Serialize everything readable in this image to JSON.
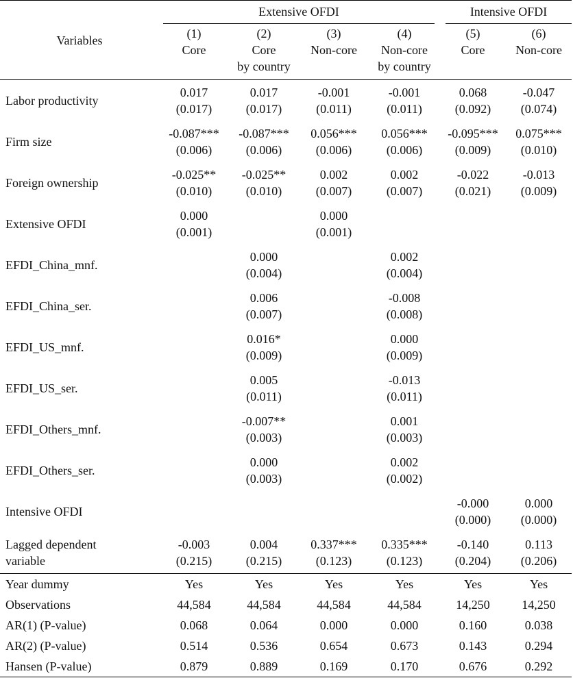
{
  "header": {
    "variables_label": "Variables",
    "group_extensive": "Extensive OFDI",
    "group_intensive": "Intensive OFDI",
    "columns": [
      {
        "num": "(1)",
        "line1": "Core",
        "line2": ""
      },
      {
        "num": "(2)",
        "line1": "Core",
        "line2": "by country"
      },
      {
        "num": "(3)",
        "line1": "Non-core",
        "line2": ""
      },
      {
        "num": "(4)",
        "line1": "Non-core",
        "line2": "by country"
      },
      {
        "num": "(5)",
        "line1": "Core",
        "line2": ""
      },
      {
        "num": "(6)",
        "line1": "Non-core",
        "line2": ""
      }
    ]
  },
  "rows": [
    {
      "label": "Labor productivity",
      "cells": [
        [
          "0.017",
          "(0.017)"
        ],
        [
          "0.017",
          "(0.017)"
        ],
        [
          "-0.001",
          "(0.011)"
        ],
        [
          "-0.001",
          "(0.011)"
        ],
        [
          "0.068",
          "(0.092)"
        ],
        [
          "-0.047",
          "(0.074)"
        ]
      ]
    },
    {
      "label": "Firm size",
      "cells": [
        [
          "-0.087***",
          "(0.006)"
        ],
        [
          "-0.087***",
          "(0.006)"
        ],
        [
          "0.056***",
          "(0.006)"
        ],
        [
          "0.056***",
          "(0.006)"
        ],
        [
          "-0.095***",
          "(0.009)"
        ],
        [
          "0.075***",
          "(0.010)"
        ]
      ]
    },
    {
      "label": "Foreign ownership",
      "cells": [
        [
          "-0.025**",
          "(0.010)"
        ],
        [
          "-0.025**",
          "(0.010)"
        ],
        [
          "0.002",
          "(0.007)"
        ],
        [
          "0.002",
          "(0.007)"
        ],
        [
          "-0.022",
          "(0.021)"
        ],
        [
          "-0.013",
          "(0.009)"
        ]
      ]
    },
    {
      "label": "Extensive OFDI",
      "cells": [
        [
          "0.000",
          "(0.001)"
        ],
        [
          "",
          ""
        ],
        [
          "0.000",
          "(0.001)"
        ],
        [
          "",
          ""
        ],
        [
          "",
          ""
        ],
        [
          "",
          ""
        ]
      ]
    },
    {
      "label": "EFDI_China_mnf.",
      "cells": [
        [
          "",
          ""
        ],
        [
          "0.000",
          "(0.004)"
        ],
        [
          "",
          ""
        ],
        [
          "0.002",
          "(0.004)"
        ],
        [
          "",
          ""
        ],
        [
          "",
          ""
        ]
      ]
    },
    {
      "label": "EFDI_China_ser.",
      "cells": [
        [
          "",
          ""
        ],
        [
          "0.006",
          "(0.007)"
        ],
        [
          "",
          ""
        ],
        [
          "-0.008",
          "(0.008)"
        ],
        [
          "",
          ""
        ],
        [
          "",
          ""
        ]
      ]
    },
    {
      "label": "EFDI_US_mnf.",
      "cells": [
        [
          "",
          ""
        ],
        [
          "0.016*",
          "(0.009)"
        ],
        [
          "",
          ""
        ],
        [
          "0.000",
          "(0.009)"
        ],
        [
          "",
          ""
        ],
        [
          "",
          ""
        ]
      ]
    },
    {
      "label": "EFDI_US_ser.",
      "cells": [
        [
          "",
          ""
        ],
        [
          "0.005",
          "(0.011)"
        ],
        [
          "",
          ""
        ],
        [
          "-0.013",
          "(0.011)"
        ],
        [
          "",
          ""
        ],
        [
          "",
          ""
        ]
      ]
    },
    {
      "label": "EFDI_Others_mnf.",
      "cells": [
        [
          "",
          ""
        ],
        [
          "-0.007**",
          "(0.003)"
        ],
        [
          "",
          ""
        ],
        [
          "0.001",
          "(0.003)"
        ],
        [
          "",
          ""
        ],
        [
          "",
          ""
        ]
      ]
    },
    {
      "label": "EFDI_Others_ser.",
      "cells": [
        [
          "",
          ""
        ],
        [
          "0.000",
          "(0.003)"
        ],
        [
          "",
          ""
        ],
        [
          "0.002",
          "(0.002)"
        ],
        [
          "",
          ""
        ],
        [
          "",
          ""
        ]
      ]
    },
    {
      "label": "Intensive OFDI",
      "cells": [
        [
          "",
          ""
        ],
        [
          "",
          ""
        ],
        [
          "",
          ""
        ],
        [
          "",
          ""
        ],
        [
          "-0.000",
          "(0.000)"
        ],
        [
          "0.000",
          "(0.000)"
        ]
      ]
    },
    {
      "label": "Lagged dependent variable",
      "label_line1": "Lagged dependent",
      "label_line2": "variable",
      "cells": [
        [
          "-0.003",
          "(0.215)"
        ],
        [
          "0.004",
          "(0.215)"
        ],
        [
          "0.337***",
          "(0.123)"
        ],
        [
          "0.335***",
          "(0.123)"
        ],
        [
          "-0.140",
          "(0.204)"
        ],
        [
          "0.113",
          "(0.206)"
        ]
      ]
    }
  ],
  "stats": [
    {
      "label": "Year dummy",
      "values": [
        "Yes",
        "Yes",
        "Yes",
        "Yes",
        "Yes",
        "Yes"
      ]
    },
    {
      "label": "Observations",
      "values": [
        "44,584",
        "44,584",
        "44,584",
        "44,584",
        "14,250",
        "14,250"
      ]
    },
    {
      "label": "AR(1) (P-value)",
      "values": [
        "0.068",
        "0.064",
        "0.000",
        "0.000",
        "0.160",
        "0.038"
      ]
    },
    {
      "label": "AR(2) (P-value)",
      "values": [
        "0.514",
        "0.536",
        "0.654",
        "0.673",
        "0.143",
        "0.294"
      ]
    },
    {
      "label": "Hansen (P-value)",
      "values": [
        "0.879",
        "0.889",
        "0.169",
        "0.170",
        "0.676",
        "0.292"
      ]
    }
  ]
}
